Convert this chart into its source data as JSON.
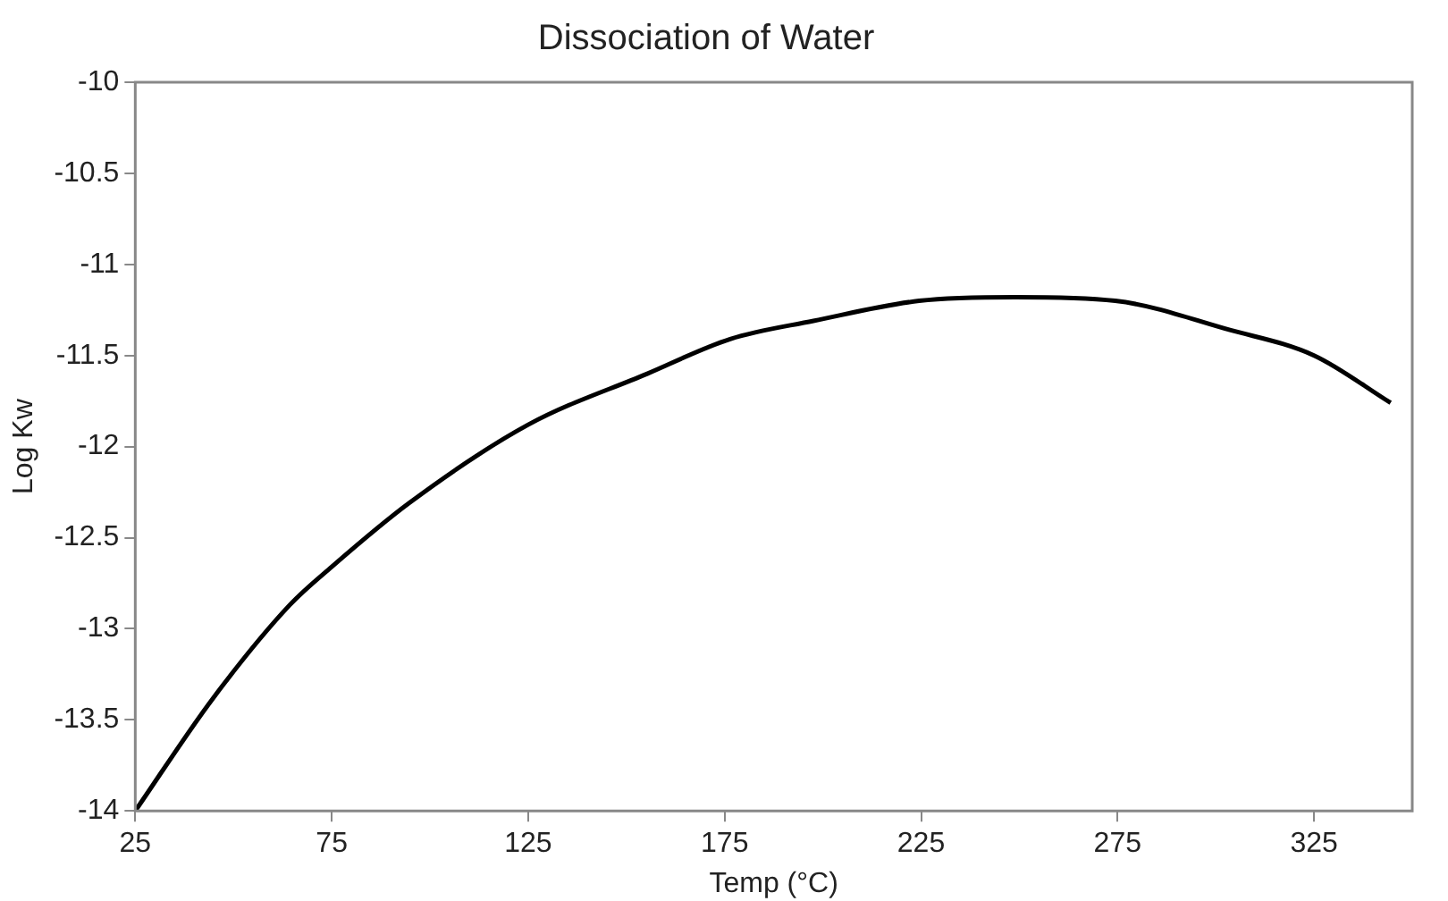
{
  "chart_data": {
    "type": "line",
    "title": "Dissociation of Water",
    "xlabel": "Temp (°C)",
    "ylabel": "Log Kw",
    "xlim": [
      25,
      350
    ],
    "xticks": [
      25,
      75,
      125,
      175,
      225,
      275,
      325
    ],
    "ylim": [
      -14,
      -10
    ],
    "yticks": [
      -14,
      -13.5,
      -13,
      -12.5,
      -12,
      -11.5,
      -11,
      -10.5,
      -10
    ],
    "grid": false,
    "legend": false,
    "marker": "none",
    "line_style": "solid",
    "series": [
      {
        "color": "#000000",
        "x": [
          25,
          44.5,
          64.3,
          75,
          94.7,
          125,
          155.3,
          176.4,
          197.6,
          224.5,
          249,
          274.4,
          303.6,
          325,
          344.5
        ],
        "values": [
          -14,
          -13.39,
          -12.87,
          -12.66,
          -12.31,
          -11.88,
          -11.6,
          -11.41,
          -11.31,
          -11.2,
          -11.18,
          -11.2,
          -11.36,
          -11.5,
          -11.76
        ]
      }
    ]
  }
}
